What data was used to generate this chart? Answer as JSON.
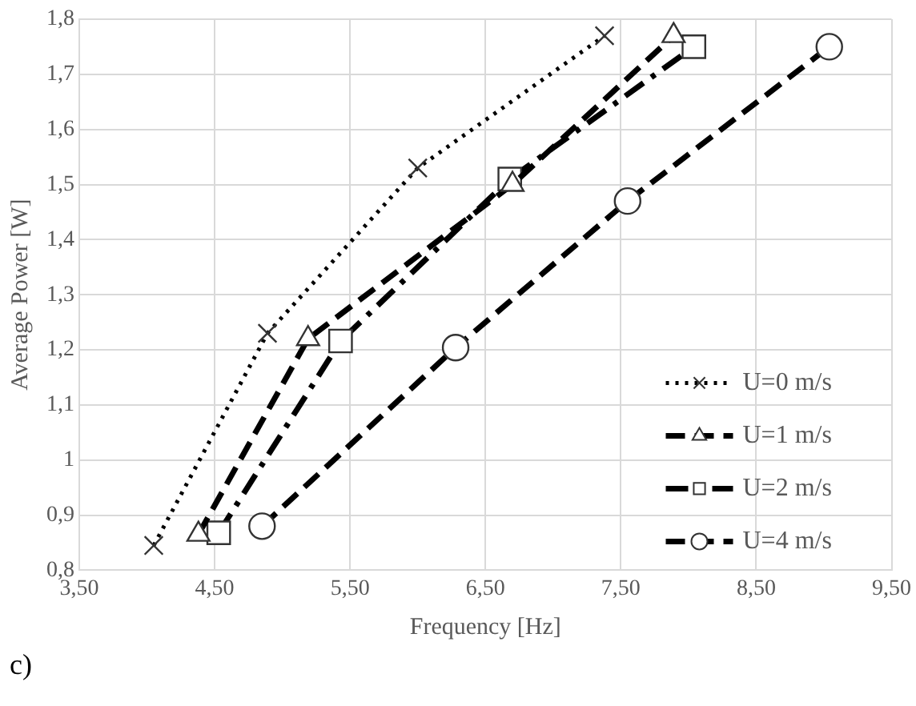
{
  "chart_data": {
    "type": "line",
    "xlabel": "Frequency [Hz]",
    "ylabel": "Average Power [W]",
    "xlim": [
      3.5,
      9.5
    ],
    "xticks": [
      {
        "value": 3.5,
        "label": "3,50"
      },
      {
        "value": 4.5,
        "label": "4,50"
      },
      {
        "value": 5.5,
        "label": "5,50"
      },
      {
        "value": 6.5,
        "label": "6,50"
      },
      {
        "value": 7.5,
        "label": "7,50"
      },
      {
        "value": 8.5,
        "label": "8,50"
      },
      {
        "value": 9.5,
        "label": "9,50"
      }
    ],
    "ylim": [
      0.8,
      1.8
    ],
    "yticks": [
      {
        "value": 0.8,
        "label": "0,8"
      },
      {
        "value": 0.9,
        "label": "0,9"
      },
      1,
      {
        "value": 1.1,
        "label": "1,1"
      },
      {
        "value": 1.2,
        "label": "1,2"
      },
      {
        "value": 1.3,
        "label": "1,3"
      },
      {
        "value": 1.4,
        "label": "1,4"
      },
      {
        "value": 1.5,
        "label": "1,5"
      },
      {
        "value": 1.6,
        "label": "1,6"
      },
      {
        "value": 1.7,
        "label": "1,7"
      },
      {
        "value": 1.8,
        "label": "1,8"
      }
    ],
    "grid": true,
    "legend": "bottom right",
    "annotations": [
      "c)"
    ],
    "series": [
      {
        "name": "U=0 m/s",
        "color": "#000000",
        "marker": "cross",
        "line_style": "dotted",
        "x": [
          4.05,
          4.89,
          6.0,
          7.38
        ],
        "values": [
          0.845,
          1.23,
          1.53,
          1.77
        ]
      },
      {
        "name": "U=1 m/s",
        "color": "#000000",
        "marker": "triangle",
        "line_style": "dashed",
        "x": [
          4.38,
          5.19,
          6.7,
          7.89
        ],
        "values": [
          0.865,
          1.22,
          1.5,
          1.77
        ]
      },
      {
        "name": "U=2 m/s",
        "color": "#000000",
        "marker": "square",
        "line_style": "dashdot",
        "x": [
          4.53,
          5.43,
          6.68,
          8.04
        ],
        "values": [
          0.868,
          1.216,
          1.51,
          1.75
        ]
      },
      {
        "name": "U=4 m/s",
        "color": "#000000",
        "marker": "circle",
        "line_style": "dashed",
        "x": [
          4.85,
          6.28,
          7.55,
          9.04
        ],
        "values": [
          0.88,
          1.204,
          1.47,
          1.75
        ]
      }
    ]
  }
}
